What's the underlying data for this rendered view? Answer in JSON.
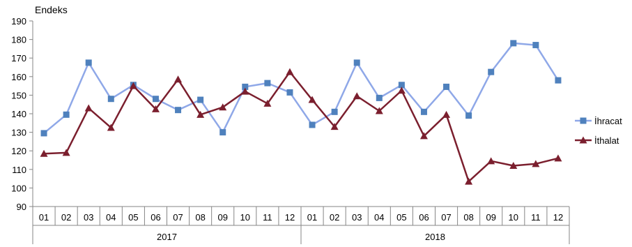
{
  "chart_data": {
    "type": "line",
    "ylabel": "Endeks",
    "ylim": [
      90,
      190
    ],
    "yticks": [
      90,
      100,
      110,
      120,
      130,
      140,
      150,
      160,
      170,
      180,
      190
    ],
    "categories": [
      "01",
      "02",
      "03",
      "04",
      "05",
      "06",
      "07",
      "08",
      "09",
      "10",
      "11",
      "12",
      "01",
      "02",
      "03",
      "04",
      "05",
      "06",
      "07",
      "08",
      "09",
      "10",
      "11",
      "12"
    ],
    "groups": [
      {
        "label": "2017",
        "count": 12
      },
      {
        "label": "2018",
        "count": 12
      }
    ],
    "grid": false,
    "legend": "right",
    "series": [
      {
        "name": "İhracat",
        "color": "#8fa8e8",
        "marker_color": "#4f81bd",
        "marker": "square",
        "values": [
          129.5,
          139.5,
          167.5,
          148,
          155.5,
          148,
          142,
          147.5,
          130,
          154.5,
          156.5,
          151.5,
          134,
          141,
          167.5,
          148.5,
          155.5,
          141,
          154.5,
          139,
          162.5,
          178,
          177,
          158
        ]
      },
      {
        "name": "İthalat",
        "color": "#7b1f2e",
        "marker_color": "#7b1f2e",
        "marker": "triangle",
        "values": [
          118.5,
          119,
          143,
          132.5,
          155,
          142.5,
          158.5,
          139.5,
          143.5,
          152,
          145.5,
          162.5,
          147.5,
          133,
          149.5,
          141.5,
          152.5,
          128,
          139.5,
          103.5,
          114.5,
          112,
          113,
          116
        ]
      }
    ]
  }
}
